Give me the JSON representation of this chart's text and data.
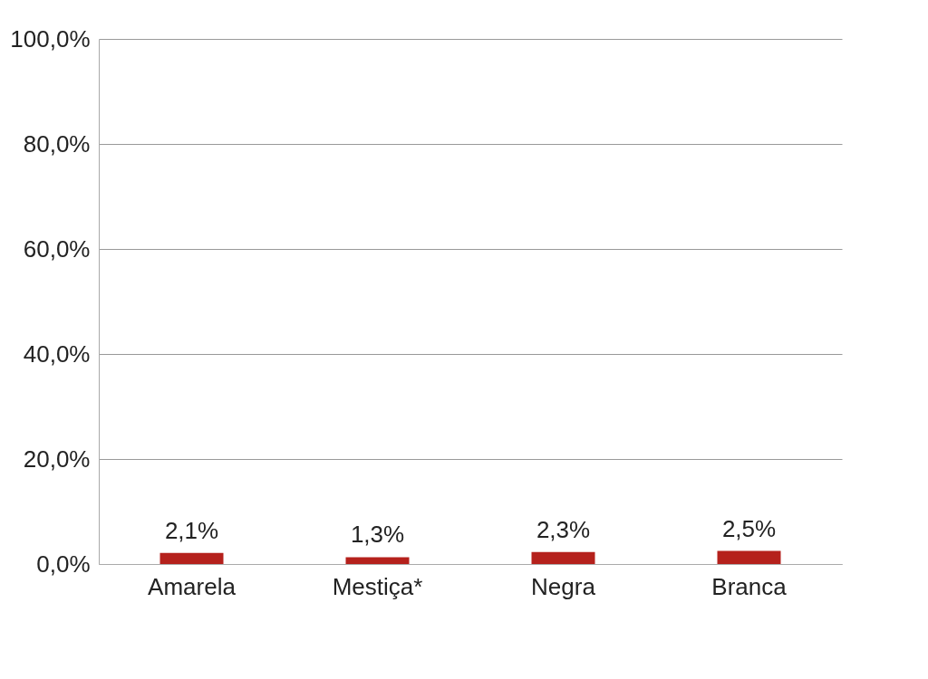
{
  "chart_data": {
    "type": "bar",
    "categories": [
      "Amarela",
      "Mestiça*",
      "Negra",
      "Branca"
    ],
    "values": [
      2.1,
      1.3,
      2.3,
      2.5
    ],
    "value_labels": [
      "2,1%",
      "1,3%",
      "2,3%",
      "2,5%"
    ],
    "color": "#b5211c",
    "ylim": [
      0,
      100
    ],
    "yticks": [
      {
        "value": 0,
        "label": "0,0%"
      },
      {
        "value": 20,
        "label": "20,0%"
      },
      {
        "value": 40,
        "label": "40,0%"
      },
      {
        "value": 60,
        "label": "60,0%"
      },
      {
        "value": 80,
        "label": "80,0%"
      },
      {
        "value": 100,
        "label": "100,0%"
      }
    ],
    "grid": "y"
  }
}
